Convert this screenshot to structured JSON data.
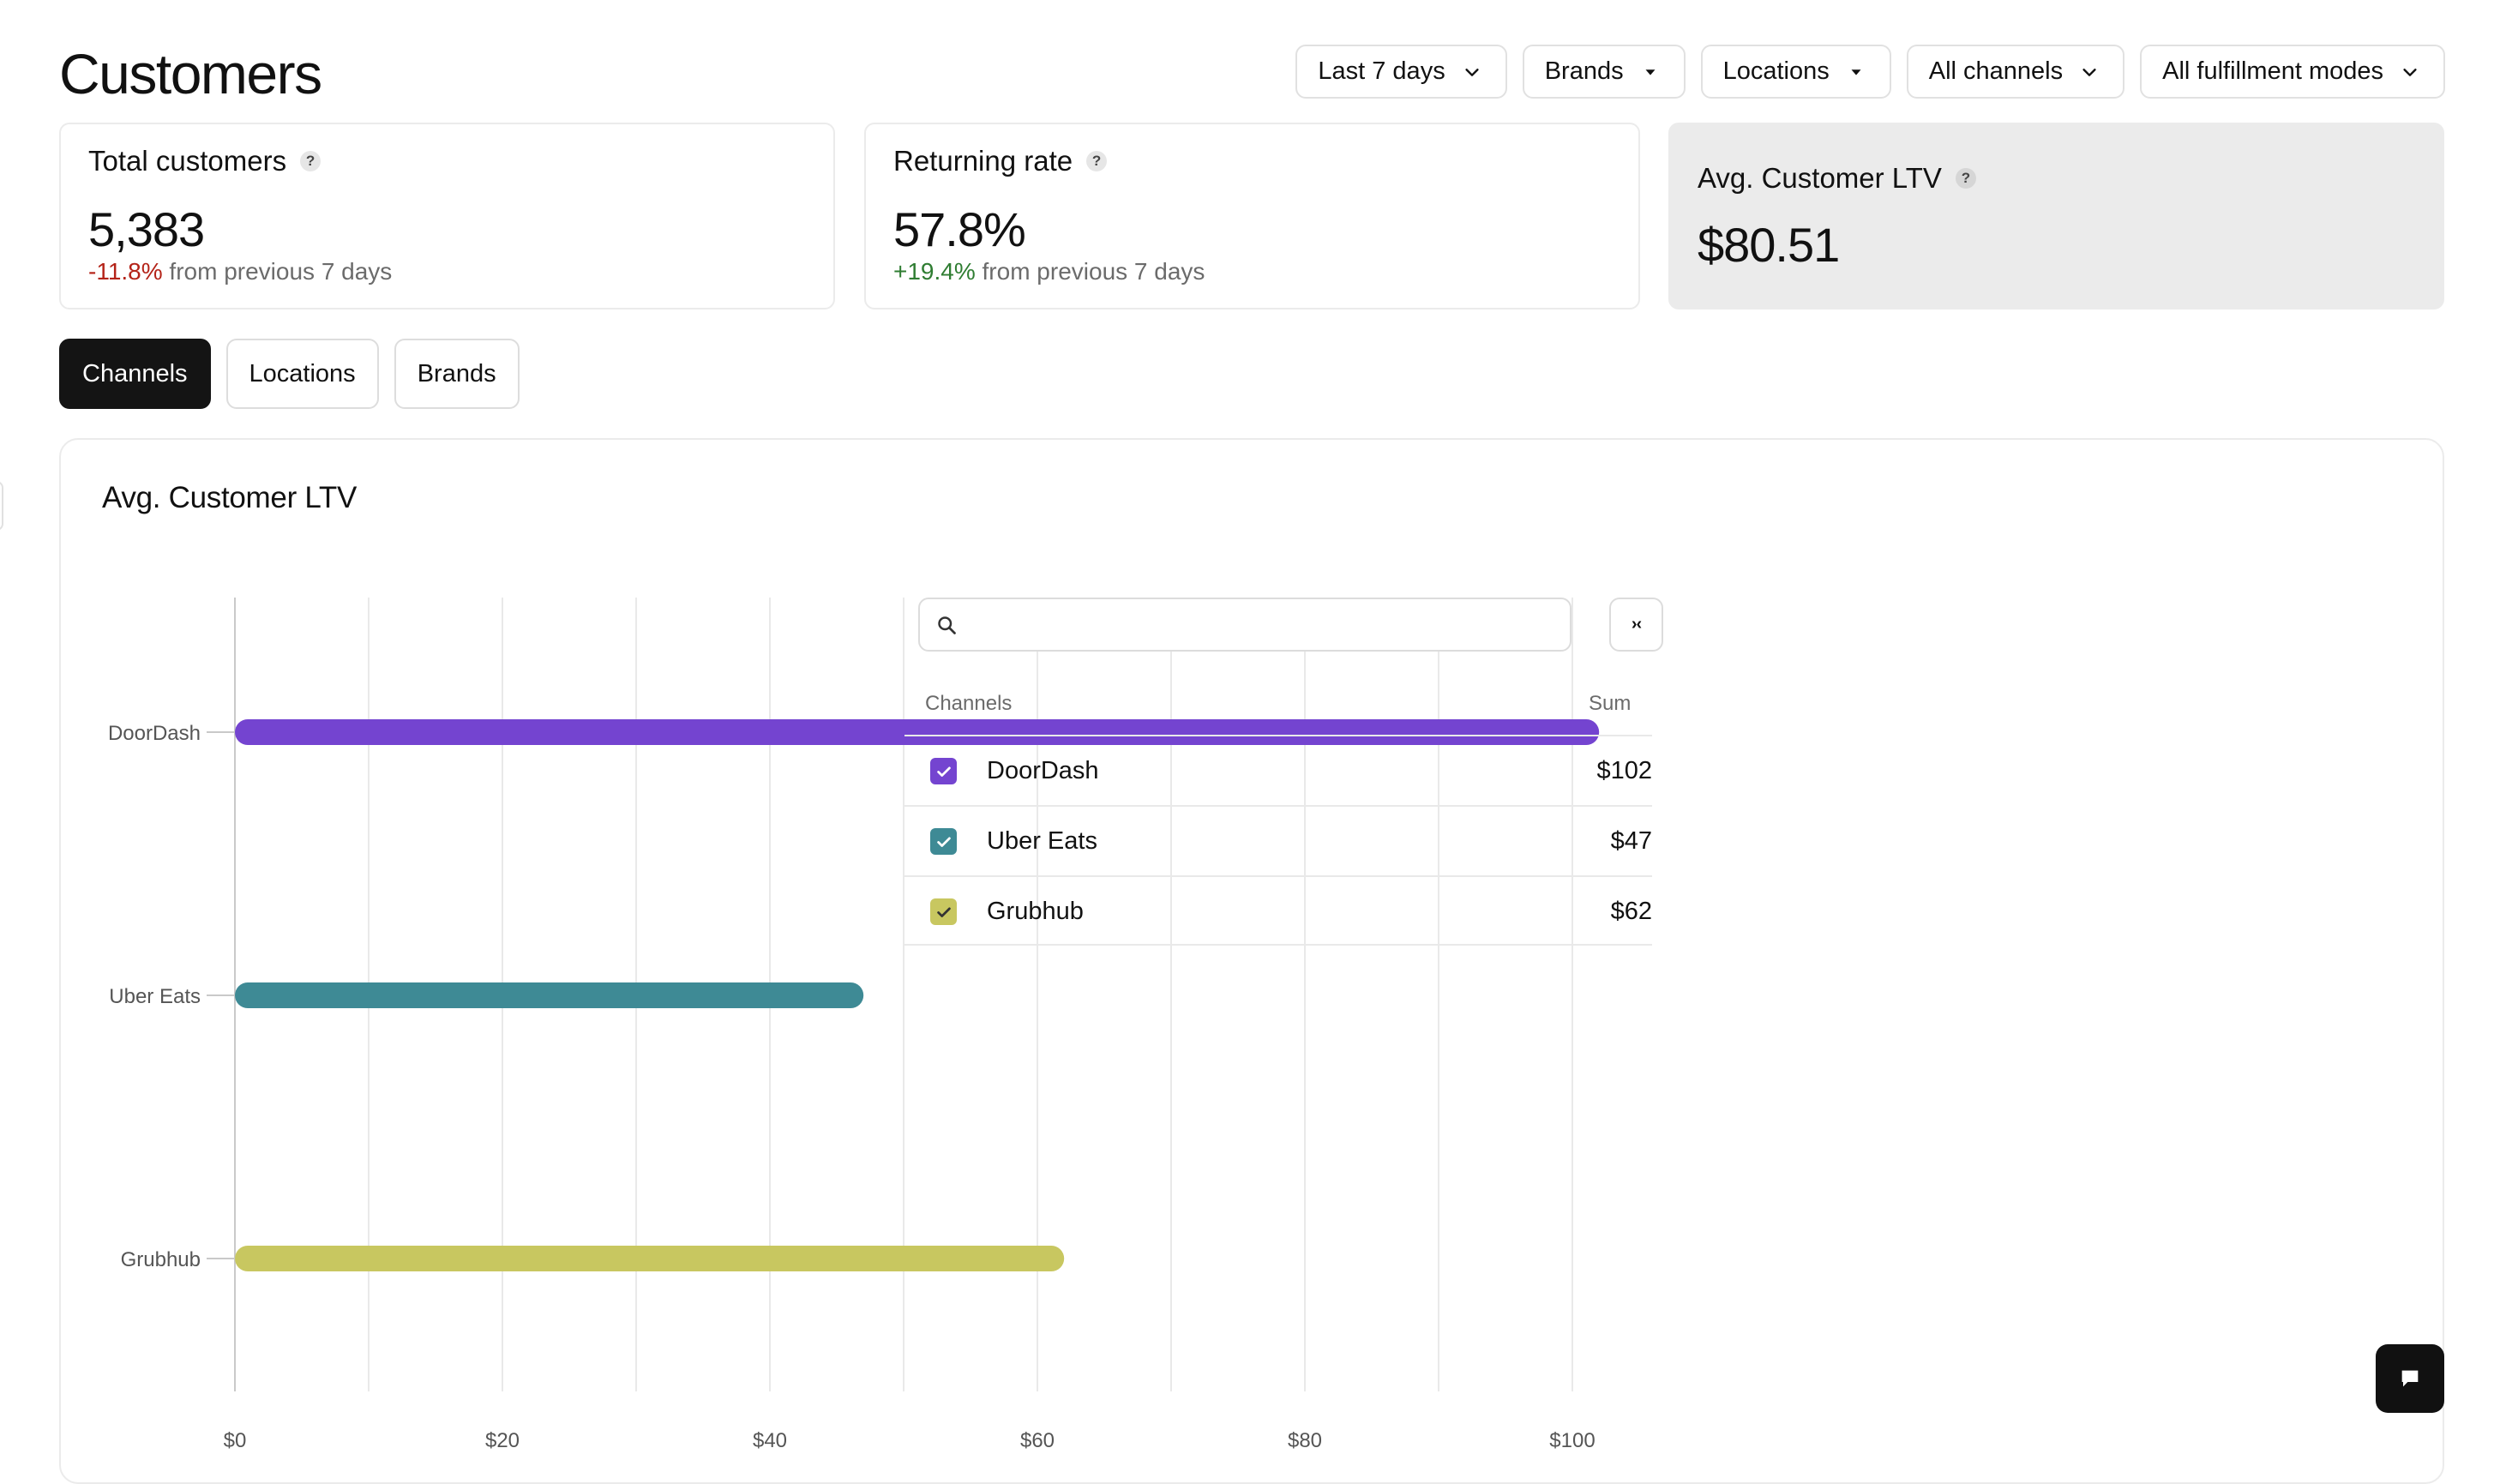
{
  "page": {
    "title": "Customers"
  },
  "filters": [
    {
      "label": "Last 7 days",
      "icon": "chevron-down-icon"
    },
    {
      "label": "Brands",
      "icon": "caret-down-icon"
    },
    {
      "label": "Locations",
      "icon": "caret-down-icon"
    },
    {
      "label": "All channels",
      "icon": "chevron-down-icon"
    },
    {
      "label": "All fulfillment modes",
      "icon": "chevron-down-icon"
    }
  ],
  "metrics": {
    "total_customers": {
      "label": "Total customers",
      "help": "?",
      "value": "5,383",
      "delta": "-11.8%",
      "delta_suffix": "from previous 7 days"
    },
    "returning_rate": {
      "label": "Returning rate",
      "help": "?",
      "value": "57.8%",
      "delta": "+19.4%",
      "delta_suffix": "from previous 7 days"
    },
    "avg_ltv": {
      "label": "Avg. Customer LTV",
      "help": "?",
      "value": "$80.51"
    }
  },
  "tabs": [
    {
      "label": "Channels",
      "active": true
    },
    {
      "label": "Locations",
      "active": false
    },
    {
      "label": "Brands",
      "active": false
    }
  ],
  "panel": {
    "title": "Avg. Customer LTV",
    "search": {
      "placeholder": "",
      "value": ""
    },
    "collapse_label": "›‹",
    "table": {
      "col_name": "Channels",
      "col_sum": "Sum",
      "rows": [
        {
          "name": "DoorDash",
          "sum": "$102",
          "checked": true,
          "color": "#7444d0"
        },
        {
          "name": "Uber Eats",
          "sum": "$47",
          "checked": true,
          "color": "#3e8a95"
        },
        {
          "name": "Grubhub",
          "sum": "$62",
          "checked": true,
          "color": "#c8c760"
        }
      ]
    }
  },
  "chart_data": {
    "type": "bar",
    "orientation": "horizontal",
    "categories": [
      "DoorDash",
      "Uber Eats",
      "Grubhub"
    ],
    "values": [
      102,
      47,
      62
    ],
    "colors": [
      "#7444d0",
      "#3e8a95",
      "#c8c760"
    ],
    "x_ticks": [
      "$0",
      "$20",
      "$40",
      "$60",
      "$80",
      "$100"
    ],
    "x_tick_values": [
      0,
      20,
      40,
      60,
      80,
      100
    ],
    "xlim": [
      0,
      100
    ],
    "title": "Avg. Customer LTV",
    "grid": true,
    "legend": "right table"
  }
}
